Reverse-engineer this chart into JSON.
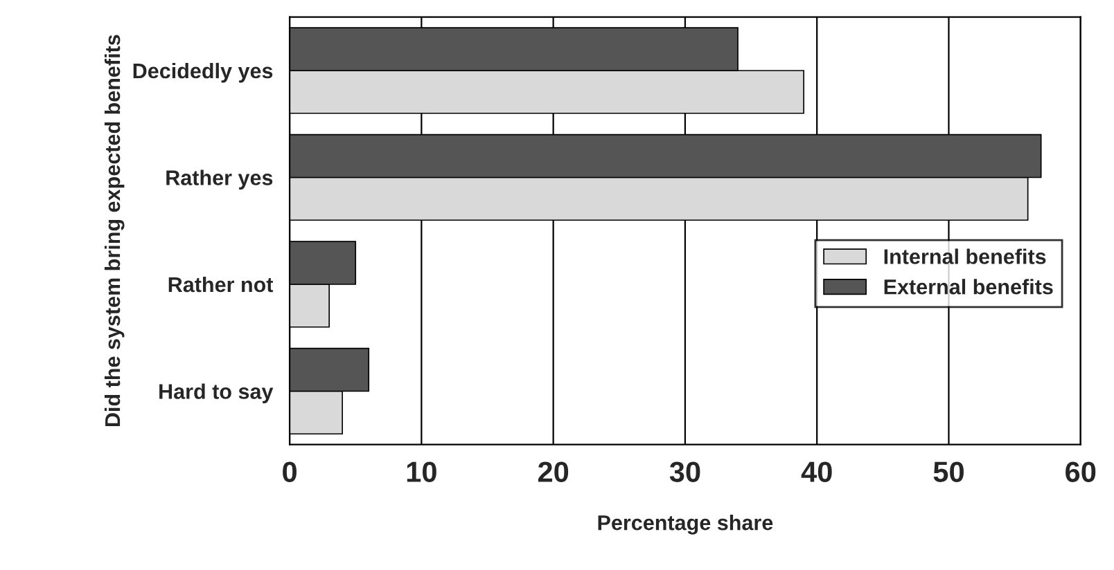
{
  "chart_data": {
    "type": "bar",
    "orientation": "horizontal",
    "categories": [
      "Decidedly yes",
      "Rather yes",
      "Rather not",
      "Hard to say"
    ],
    "series": [
      {
        "name": "Internal benefits",
        "color": "#d9d9d9",
        "values": [
          39,
          56,
          3,
          4
        ]
      },
      {
        "name": "External benefits",
        "color": "#555555",
        "values": [
          34,
          57,
          5,
          6
        ]
      }
    ],
    "xlabel": "Percentage share",
    "ylabel": "Did the system bring expected benefits",
    "xlim": [
      0,
      60
    ],
    "xticks": [
      0,
      10,
      20,
      30,
      40,
      50,
      60
    ],
    "grid": "x",
    "legend": "right"
  }
}
